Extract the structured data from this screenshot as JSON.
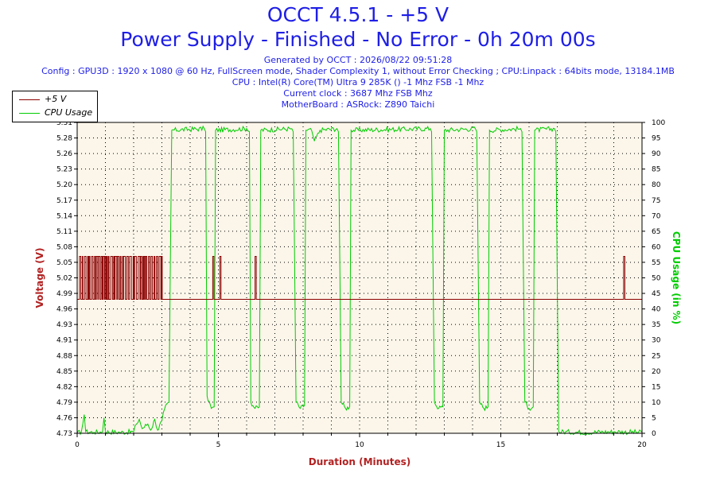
{
  "header": {
    "title": "OCCT 4.5.1 - +5 V",
    "subtitle": "Power Supply - Finished - No Error - 0h 20m 00s",
    "generated": "Generated by OCCT : 2026/08/22 09:51:28",
    "config": "Config : GPU3D : 1920 x 1080 @ 60 Hz, FullScreen mode, Shader Complexity 1, without Error Checking ; CPU:Linpack : 64bits mode, 13184.1MB",
    "cpu": "CPU : Intel(R) Core(TM) Ultra 9 285K () -1 Mhz FSB -1 Mhz",
    "clock": "Current clock : 3687 Mhz FSB  Mhz",
    "motherboard": "MotherBoard : ASRock: Z890 Taichi"
  },
  "legend": {
    "voltage": "+5 V",
    "cpu": "CPU Usage"
  },
  "colors": {
    "voltage": "#8b0000",
    "cpu": "#00cc00",
    "title": "#1e1ee6",
    "plot_bg": "#fcf6ea",
    "grid": "#000000"
  },
  "chart_data": {
    "type": "line",
    "xlabel": "Duration (Minutes)",
    "ylabel_left": "Voltage (V)",
    "ylabel_right": "CPU Usage (in %)",
    "xlim": [
      0,
      20
    ],
    "x_ticks": [
      0,
      5,
      10,
      15,
      20
    ],
    "ylim_left": [
      4.73,
      5.31
    ],
    "y_ticks_left": [
      "4.73",
      "4.76",
      "4.79",
      "4.82",
      "4.85",
      "4.88",
      "4.91",
      "4.93",
      "4.96",
      "4.99",
      "5.02",
      "5.05",
      "5.08",
      "5.11",
      "5.14",
      "5.17",
      "5.20",
      "5.23",
      "5.26",
      "5.28",
      "5.31"
    ],
    "ylim_right": [
      0,
      100
    ],
    "y_ticks_right": [
      0,
      5,
      10,
      15,
      20,
      25,
      30,
      35,
      40,
      45,
      50,
      55,
      60,
      65,
      70,
      75,
      80,
      85,
      90,
      95,
      100
    ],
    "grid": true,
    "series": [
      {
        "name": "+5 V",
        "axis": "left",
        "baseline": 4.98,
        "toggle_high": 5.06,
        "dense_toggle_range": [
          0.05,
          3.05
        ],
        "spikes": [
          {
            "x": 4.8,
            "high": 5.06
          },
          {
            "x": 5.05,
            "high": 5.06
          },
          {
            "x": 6.3,
            "high": 5.06
          },
          {
            "x": 19.35,
            "high": 5.06
          }
        ]
      },
      {
        "name": "CPU Usage",
        "axis": "right",
        "points": [
          [
            0,
            0
          ],
          [
            0.15,
            0.5
          ],
          [
            0.25,
            6
          ],
          [
            0.3,
            0.5
          ],
          [
            0.6,
            0.3
          ],
          [
            0.9,
            0.5
          ],
          [
            0.95,
            5
          ],
          [
            1.0,
            0.5
          ],
          [
            1.5,
            0.3
          ],
          [
            2.0,
            0.5
          ],
          [
            2.1,
            3
          ],
          [
            2.2,
            4.5
          ],
          [
            2.3,
            1.5
          ],
          [
            2.5,
            3
          ],
          [
            2.6,
            1
          ],
          [
            2.75,
            4.5
          ],
          [
            2.85,
            1
          ],
          [
            3.0,
            4
          ],
          [
            3.1,
            8
          ],
          [
            3.25,
            10
          ],
          [
            3.35,
            97.5
          ],
          [
            4.5,
            98
          ],
          [
            4.55,
            97
          ],
          [
            4.6,
            12
          ],
          [
            4.75,
            8
          ],
          [
            4.85,
            8.5
          ],
          [
            4.9,
            97.5
          ],
          [
            6.0,
            98
          ],
          [
            6.1,
            97
          ],
          [
            6.15,
            10
          ],
          [
            6.3,
            8
          ],
          [
            6.45,
            8.5
          ],
          [
            6.5,
            97.5
          ],
          [
            7.6,
            98
          ],
          [
            7.65,
            97
          ],
          [
            7.75,
            10
          ],
          [
            7.9,
            8
          ],
          [
            8.05,
            9
          ],
          [
            8.1,
            97.5
          ],
          [
            8.3,
            97.5
          ],
          [
            8.4,
            94
          ],
          [
            8.6,
            97.5
          ],
          [
            9.2,
            98
          ],
          [
            9.25,
            97
          ],
          [
            9.35,
            10
          ],
          [
            9.5,
            8
          ],
          [
            9.65,
            8.5
          ],
          [
            9.7,
            97.5
          ],
          [
            12.5,
            98
          ],
          [
            12.55,
            97
          ],
          [
            12.65,
            10
          ],
          [
            12.8,
            8
          ],
          [
            12.95,
            8.5
          ],
          [
            13.0,
            97.5
          ],
          [
            14.1,
            98
          ],
          [
            14.15,
            97
          ],
          [
            14.25,
            10
          ],
          [
            14.4,
            8
          ],
          [
            14.55,
            8.5
          ],
          [
            14.6,
            97.5
          ],
          [
            15.7,
            98
          ],
          [
            15.75,
            97
          ],
          [
            15.85,
            10
          ],
          [
            16.0,
            8
          ],
          [
            16.15,
            8.5
          ],
          [
            16.2,
            97.5
          ],
          [
            16.9,
            98
          ],
          [
            16.95,
            97
          ],
          [
            17.05,
            0.5
          ],
          [
            18.0,
            0.3
          ],
          [
            19.0,
            0.5
          ],
          [
            20.0,
            0.3
          ]
        ]
      }
    ]
  }
}
